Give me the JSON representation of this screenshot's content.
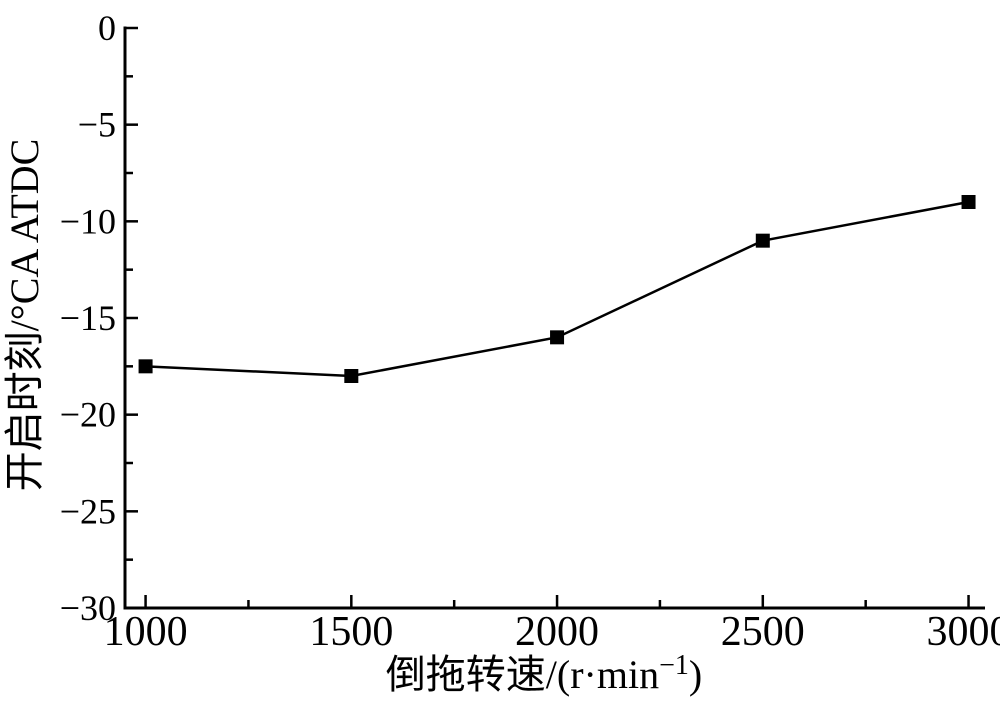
{
  "figure": {
    "background_color": "#ffffff",
    "title": ""
  },
  "chart_data": {
    "type": "line",
    "title": "",
    "xlabel": "倒拖转速/(r·min−1)",
    "xlabel_parts": {
      "base": "倒拖转速/(r·min",
      "superscript": "−1",
      "close": ")"
    },
    "ylabel": "开启时刻/°CA ATDC",
    "x": [
      1000,
      1500,
      2000,
      2500,
      3000
    ],
    "values": [
      -17.5,
      -18,
      -16,
      -11,
      -9
    ],
    "series_name": "开启时刻",
    "xlim": [
      950,
      3040
    ],
    "ylim": [
      -30,
      0
    ],
    "x_major_ticks": [
      1000,
      1500,
      2000,
      2500,
      3000
    ],
    "x_tick_labels": [
      "1000",
      "1500",
      "2000",
      "2500",
      "3000"
    ],
    "x_minor_ticks": [
      1250,
      1750,
      2250,
      2750
    ],
    "y_major_ticks": [
      0,
      -5,
      -10,
      -15,
      -20,
      -25,
      -30
    ],
    "y_tick_labels": [
      "0",
      "−5",
      "−10",
      "−15",
      "−20",
      "−25",
      "−30"
    ],
    "y_minor_ticks": [
      -2.5,
      -7.5,
      -12.5,
      -17.5,
      -22.5,
      -27.5
    ],
    "marker": "filled-square",
    "line_color": "#000000",
    "grid": false,
    "legend": "none"
  }
}
